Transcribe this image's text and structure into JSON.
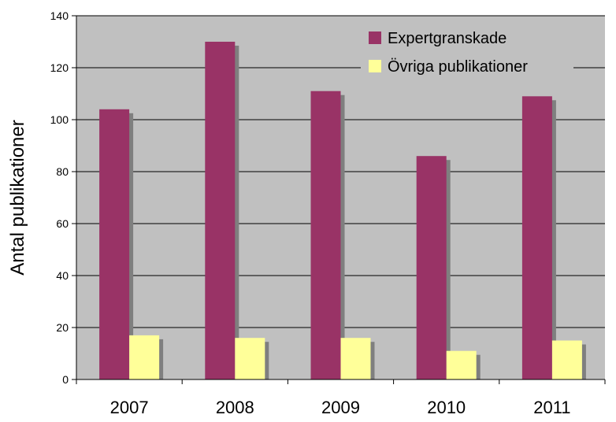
{
  "chart_data": {
    "type": "bar",
    "title": "",
    "xlabel": "",
    "ylabel": "Antal publikationer",
    "ylim": [
      0,
      140
    ],
    "yticks": [
      0,
      20,
      40,
      60,
      80,
      100,
      120,
      140
    ],
    "grid": true,
    "legend_position": "top-right",
    "categories": [
      "2007",
      "2008",
      "2009",
      "2010",
      "2011"
    ],
    "series": [
      {
        "name": "Expertgranskade",
        "color": "#993366",
        "values": [
          104,
          130,
          111,
          86,
          109
        ]
      },
      {
        "name": "Övriga publikationer",
        "color": "#FFFF99",
        "values": [
          17,
          16,
          16,
          11,
          15
        ]
      }
    ],
    "plot_background": "#C0C0C0"
  }
}
